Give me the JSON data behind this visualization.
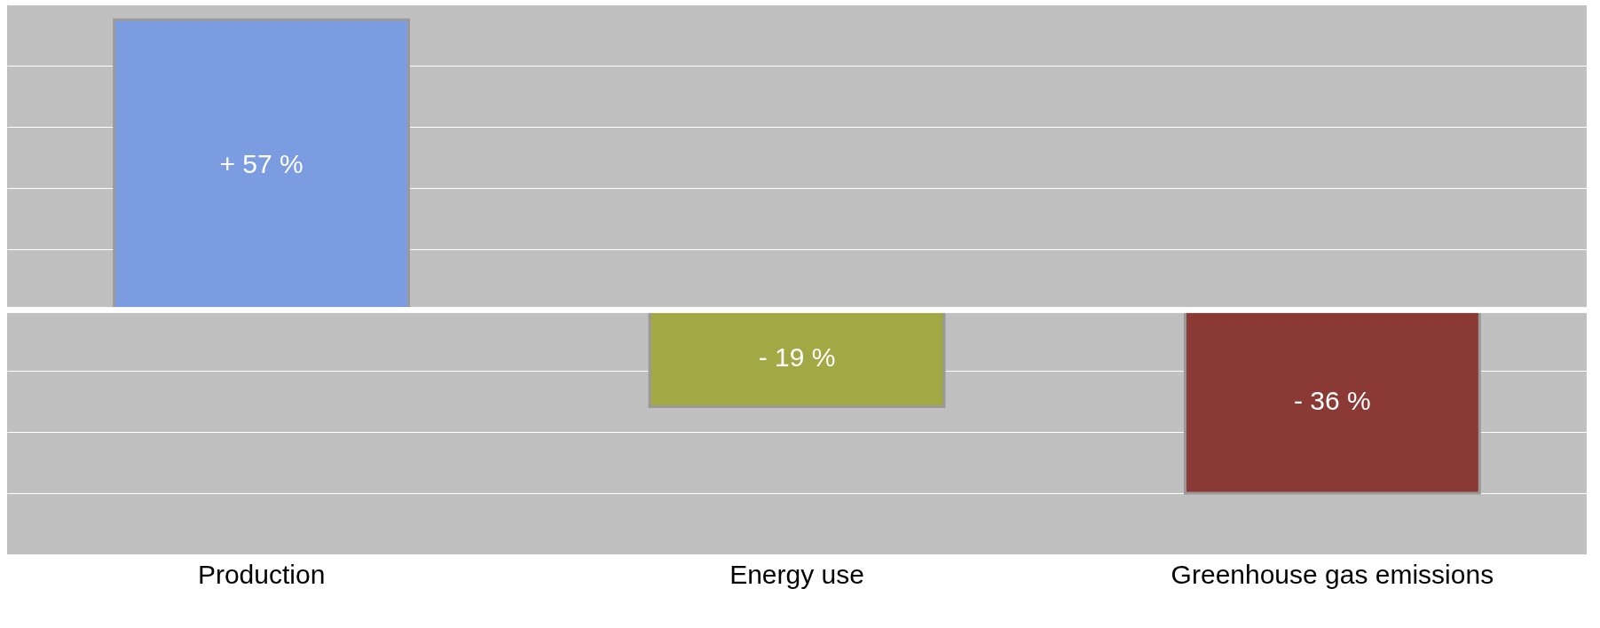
{
  "chart_data": {
    "type": "bar",
    "categories": [
      "Production",
      "Energy use",
      "Greenhouse gas emissions"
    ],
    "values": [
      57,
      -19,
      -36
    ],
    "colors": [
      "#7b9ce0",
      "#a2a843",
      "#8a3934"
    ],
    "value_labels": [
      "+ 57 %",
      "- 19 %",
      "- 36 %"
    ],
    "ylim": [
      -48,
      60
    ],
    "yticks": [
      {
        "value": -48,
        "label": null
      },
      {
        "value": -36,
        "label": null
      },
      {
        "value": -24,
        "label": null
      },
      {
        "value": -12,
        "label": null
      },
      {
        "value": 0,
        "label": null
      },
      {
        "value": 12,
        "label": null
      },
      {
        "value": 24,
        "label": null
      },
      {
        "value": 36,
        "label": null
      },
      {
        "value": 48,
        "label": null
      },
      {
        "value": 60,
        "label": null
      }
    ],
    "grid": "y",
    "tick_labels": "x"
  }
}
